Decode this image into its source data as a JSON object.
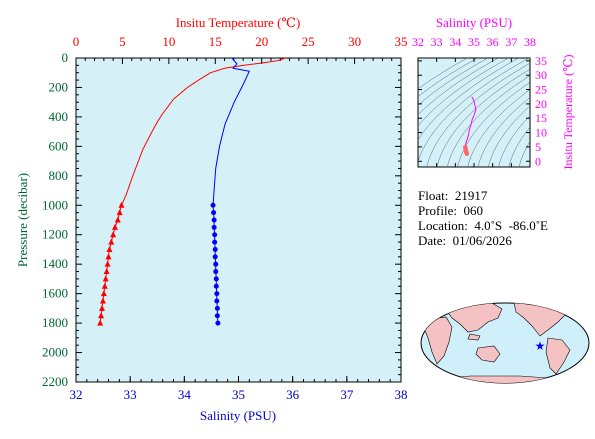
{
  "chart_data": [
    {
      "type": "line",
      "title": "",
      "x_top_label": "Insitu Temperature (℃)",
      "x_bottom_label": "Salinity (PSU)",
      "ylabel": "Pressure (decibar)",
      "temp_range": [
        0,
        35
      ],
      "temp_ticks": [
        "0",
        "5",
        "10",
        "15",
        "20",
        "25",
        "30",
        "35"
      ],
      "sal_range": [
        32,
        38
      ],
      "sal_ticks": [
        "32",
        "33",
        "34",
        "35",
        "36",
        "37",
        "38"
      ],
      "pressure_range": [
        0,
        2200
      ],
      "pressure_ticks": [
        "0",
        "200",
        "400",
        "600",
        "800",
        "1000",
        "1200",
        "1400",
        "1600",
        "1800",
        "2000",
        "2200"
      ],
      "grid": false,
      "colors": {
        "temperature": "#ff0000",
        "salinity": "#0000ff",
        "plot_bg": "#d6f0f8",
        "axis_text": "#006633"
      },
      "series": [
        {
          "variable": "temperature",
          "points": [
            [
              22.5,
              0
            ],
            [
              22.0,
              15
            ],
            [
              20.5,
              30
            ],
            [
              18.0,
              50
            ],
            [
              16.0,
              70
            ],
            [
              14.5,
              100
            ],
            [
              13.2,
              150
            ],
            [
              12.0,
              200
            ],
            [
              10.5,
              280
            ],
            [
              9.3,
              380
            ],
            [
              8.8,
              430
            ],
            [
              8.1,
              510
            ],
            [
              7.2,
              620
            ],
            [
              6.6,
              720
            ],
            [
              6.0,
              820
            ],
            [
              5.4,
              930
            ],
            [
              4.9,
              1000
            ],
            [
              4.7,
              1050
            ],
            [
              4.5,
              1100
            ],
            [
              4.2,
              1150
            ],
            [
              4.0,
              1200
            ],
            [
              3.8,
              1250
            ],
            [
              3.6,
              1300
            ],
            [
              3.5,
              1350
            ],
            [
              3.4,
              1400
            ],
            [
              3.3,
              1450
            ],
            [
              3.2,
              1500
            ],
            [
              3.1,
              1550
            ],
            [
              3.0,
              1600
            ],
            [
              2.9,
              1650
            ],
            [
              2.8,
              1700
            ],
            [
              2.7,
              1750
            ],
            [
              2.6,
              1800
            ]
          ],
          "marker_from_pressure": 1000
        },
        {
          "variable": "salinity",
          "points": [
            [
              34.88,
              0
            ],
            [
              34.97,
              40
            ],
            [
              34.9,
              70
            ],
            [
              35.2,
              90
            ],
            [
              35.1,
              170
            ],
            [
              34.92,
              300
            ],
            [
              34.75,
              450
            ],
            [
              34.65,
              600
            ],
            [
              34.58,
              750
            ],
            [
              34.55,
              900
            ],
            [
              34.53,
              1000
            ],
            [
              34.54,
              1050
            ],
            [
              34.55,
              1100
            ],
            [
              34.55,
              1150
            ],
            [
              34.56,
              1200
            ],
            [
              34.56,
              1250
            ],
            [
              34.57,
              1300
            ],
            [
              34.57,
              1350
            ],
            [
              34.58,
              1400
            ],
            [
              34.58,
              1450
            ],
            [
              34.59,
              1500
            ],
            [
              34.59,
              1550
            ],
            [
              34.6,
              1600
            ],
            [
              34.6,
              1650
            ],
            [
              34.61,
              1700
            ],
            [
              34.61,
              1750
            ],
            [
              34.62,
              1800
            ]
          ],
          "marker_from_pressure": 1000
        }
      ]
    },
    {
      "type": "scatter",
      "title": "Salinity (PSU)",
      "xlabel": "Salinity (PSU)",
      "ylabel": "Insitu Temperature (℃)",
      "x_range": [
        32,
        38
      ],
      "x_ticks": [
        "32",
        "33",
        "34",
        "35",
        "36",
        "37",
        "38"
      ],
      "y_range": [
        -2,
        36
      ],
      "y_ticks": [
        "0",
        "5",
        "10",
        "15",
        "20",
        "25",
        "30",
        "35"
      ],
      "colors": {
        "profile": "#ff00ff",
        "deep_points": "#ff6666",
        "contours": "#4a6a8a",
        "axis_text": "#ff00ff"
      },
      "ts_points": [
        [
          34.88,
          22.5
        ],
        [
          35.0,
          21.0
        ],
        [
          35.1,
          18.0
        ],
        [
          35.0,
          16.0
        ],
        [
          34.9,
          14.5
        ],
        [
          34.85,
          13.0
        ],
        [
          34.75,
          11.0
        ],
        [
          34.7,
          9.0
        ],
        [
          34.65,
          8.0
        ],
        [
          34.6,
          7.0
        ],
        [
          34.55,
          6.0
        ],
        [
          34.53,
          5.0
        ]
      ],
      "deep_points": [
        [
          34.53,
          4.9
        ],
        [
          34.55,
          4.5
        ],
        [
          34.56,
          4.0
        ],
        [
          34.57,
          3.6
        ],
        [
          34.58,
          3.3
        ],
        [
          34.6,
          3.0
        ],
        [
          34.62,
          2.6
        ]
      ]
    }
  ],
  "info": {
    "float": "Float:  21917",
    "profile": "Profile:  060",
    "location": "Location:  4.0˚S  -86.0˚E",
    "date": "Date:  01/06/2026"
  },
  "map": {
    "float_lat": -4.0,
    "float_lon": -86.0,
    "colors": {
      "ocean": "#cfeffa",
      "land": "#f4c2c2",
      "marker": "#0000ff"
    }
  }
}
